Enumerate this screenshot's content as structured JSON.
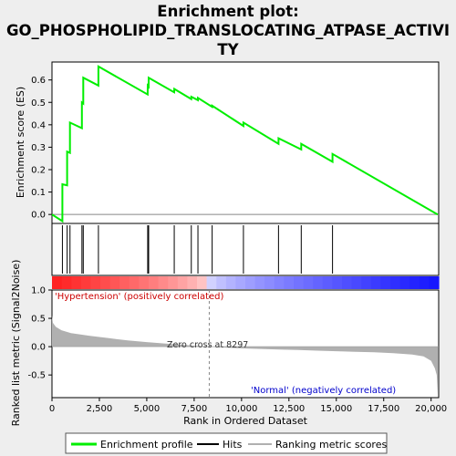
{
  "title_lines": [
    "Enrichment plot:",
    "GO_PHOSPHOLIPID_TRANSLOCATING_ATPASE_ACTIVI",
    "TY"
  ],
  "labels": {
    "es_ylabel": "Enrichment score (ES)",
    "metric_ylabel": "Ranked list metric (Signal2Noise)",
    "xlabel": "Rank in Ordered Dataset",
    "positive": "'Hypertension' (positively correlated)",
    "negative": "'Normal' (negatively correlated)",
    "zero_cross": "Zero cross at 8297"
  },
  "legend": {
    "enrichment": "Enrichment profile",
    "hits": "Hits",
    "ranking": "Ranking metric scores"
  },
  "colors": {
    "enrichment_line": "#00ee00",
    "positive_band": "#ff0000",
    "negative_band": "#0000ff",
    "metric_fill": "#b0b0b0"
  },
  "chart_data": {
    "type": "line",
    "x_range": [
      0,
      20400
    ],
    "x_ticks": [
      "0",
      "2,500",
      "5,000",
      "7,500",
      "10,000",
      "12,500",
      "15,000",
      "17,500",
      "20,000"
    ],
    "es_ylim": [
      -0.04,
      0.68
    ],
    "es_ticks": [
      "0.0",
      "0.1",
      "0.2",
      "0.3",
      "0.4",
      "0.5",
      "0.6"
    ],
    "metric_ylim": [
      -0.9,
      1.0
    ],
    "metric_ticks": [
      "-0.5",
      "0.0",
      "0.5",
      "1.0"
    ],
    "zero_cross": 8297,
    "hits": [
      550,
      800,
      950,
      1580,
      1650,
      2450,
      5050,
      5100,
      6450,
      7350,
      7700,
      8450,
      10100,
      11950,
      13150,
      14800
    ],
    "enrichment_profile": [
      [
        0,
        0.0
      ],
      [
        549,
        -0.03
      ],
      [
        550,
        0.135
      ],
      [
        799,
        0.13
      ],
      [
        800,
        0.28
      ],
      [
        949,
        0.275
      ],
      [
        950,
        0.41
      ],
      [
        1579,
        0.385
      ],
      [
        1580,
        0.5
      ],
      [
        1649,
        0.495
      ],
      [
        1650,
        0.61
      ],
      [
        2449,
        0.575
      ],
      [
        2450,
        0.66
      ],
      [
        5049,
        0.535
      ],
      [
        5050,
        0.575
      ],
      [
        5099,
        0.57
      ],
      [
        5100,
        0.61
      ],
      [
        6449,
        0.545
      ],
      [
        6450,
        0.56
      ],
      [
        7349,
        0.515
      ],
      [
        7350,
        0.525
      ],
      [
        7699,
        0.51
      ],
      [
        7700,
        0.52
      ],
      [
        8449,
        0.48
      ],
      [
        8450,
        0.485
      ],
      [
        10099,
        0.395
      ],
      [
        10100,
        0.41
      ],
      [
        11949,
        0.315
      ],
      [
        11950,
        0.34
      ],
      [
        13149,
        0.29
      ],
      [
        13150,
        0.315
      ],
      [
        14799,
        0.235
      ],
      [
        14800,
        0.27
      ],
      [
        20350,
        0.0
      ]
    ],
    "ranking_metric": [
      [
        0,
        0.55
      ],
      [
        50,
        0.42
      ],
      [
        200,
        0.35
      ],
      [
        500,
        0.29
      ],
      [
        1000,
        0.24
      ],
      [
        2000,
        0.19
      ],
      [
        3000,
        0.15
      ],
      [
        4000,
        0.11
      ],
      [
        5000,
        0.08
      ],
      [
        6000,
        0.055
      ],
      [
        7000,
        0.03
      ],
      [
        8297,
        0.0
      ],
      [
        9000,
        -0.015
      ],
      [
        10000,
        -0.03
      ],
      [
        11000,
        -0.04
      ],
      [
        12000,
        -0.05
      ],
      [
        13000,
        -0.06
      ],
      [
        14000,
        -0.07
      ],
      [
        15000,
        -0.08
      ],
      [
        16000,
        -0.09
      ],
      [
        17000,
        -0.1
      ],
      [
        18000,
        -0.115
      ],
      [
        19000,
        -0.14
      ],
      [
        19600,
        -0.17
      ],
      [
        20000,
        -0.25
      ],
      [
        20200,
        -0.38
      ],
      [
        20300,
        -0.5
      ],
      [
        20350,
        -0.85
      ]
    ]
  }
}
